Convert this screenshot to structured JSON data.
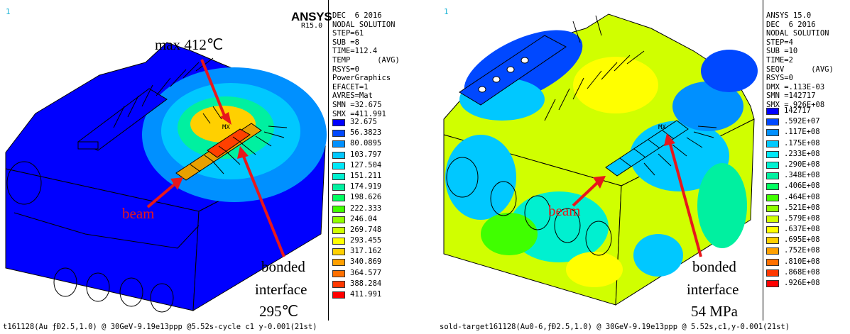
{
  "left": {
    "viewport_number": "1",
    "logo": "ANSYS",
    "logo_release": "R15.0",
    "info": [
      "DEC  6 2016",
      "NODAL SOLUTION",
      "STEP=61",
      "SUB =8",
      "TIME=112.4",
      "TEMP      (AVG)",
      "RSYS=0",
      "PowerGraphics",
      "EFACET=1",
      "AVRES=Mat",
      "SMN =32.675",
      "SMX =411.991"
    ],
    "legend": [
      {
        "value": "32.675",
        "color": "#0000ff"
      },
      {
        "value": "56.3823",
        "color": "#0048ff"
      },
      {
        "value": "80.0895",
        "color": "#0090ff"
      },
      {
        "value": "103.797",
        "color": "#00c8ff"
      },
      {
        "value": "127.504",
        "color": "#00e8f8"
      },
      {
        "value": "151.211",
        "color": "#00f0d0"
      },
      {
        "value": "174.919",
        "color": "#00f0a0"
      },
      {
        "value": "198.626",
        "color": "#00ff60"
      },
      {
        "value": "222.333",
        "color": "#40ff00"
      },
      {
        "value": "246.04",
        "color": "#90ff00"
      },
      {
        "value": "269.748",
        "color": "#d0ff00"
      },
      {
        "value": "293.455",
        "color": "#ffff00"
      },
      {
        "value": "317.162",
        "color": "#ffd000"
      },
      {
        "value": "340.869",
        "color": "#ffa000"
      },
      {
        "value": "364.577",
        "color": "#ff7000"
      },
      {
        "value": "388.284",
        "color": "#ff3800"
      },
      {
        "value": "411.991",
        "color": "#ff0000"
      }
    ],
    "annotations": {
      "max": "max 412℃",
      "beam": "beam",
      "bonded": "bonded",
      "interface": "interface",
      "value": "295℃",
      "mx": "MX"
    },
    "footer": "t161128(Au ƒÐ2.5,1.0) @ 30GeV-9.19e13ppp @5.52s-cycle c1 y-0.001(21st)"
  },
  "right": {
    "viewport_number": "1",
    "info": [
      "ANSYS 15.0",
      "DEC  6 2016",
      "NODAL SOLUTION",
      "STEP=4",
      "SUB =10",
      "TIME=2",
      "SEQV      (AVG)",
      "RSYS=0",
      "DMX =.113E-03",
      "SMN =142717",
      "SMX =.926E+08"
    ],
    "legend": [
      {
        "value": "142717",
        "color": "#0000ff"
      },
      {
        "value": ".592E+07",
        "color": "#0048ff"
      },
      {
        "value": ".117E+08",
        "color": "#0090ff"
      },
      {
        "value": ".175E+08",
        "color": "#00c8ff"
      },
      {
        "value": ".233E+08",
        "color": "#00e8f8"
      },
      {
        "value": ".290E+08",
        "color": "#00f0d0"
      },
      {
        "value": ".348E+08",
        "color": "#00f0a0"
      },
      {
        "value": ".406E+08",
        "color": "#00ff60"
      },
      {
        "value": ".464E+08",
        "color": "#40ff00"
      },
      {
        "value": ".521E+08",
        "color": "#90ff00"
      },
      {
        "value": ".579E+08",
        "color": "#d0ff00"
      },
      {
        "value": ".637E+08",
        "color": "#ffff00"
      },
      {
        "value": ".695E+08",
        "color": "#ffd000"
      },
      {
        "value": ".752E+08",
        "color": "#ffa000"
      },
      {
        "value": ".810E+08",
        "color": "#ff7000"
      },
      {
        "value": ".868E+08",
        "color": "#ff3800"
      },
      {
        "value": ".926E+08",
        "color": "#ff0000"
      }
    ],
    "annotations": {
      "beam": "beam",
      "bonded": "bonded",
      "interface": "interface",
      "value": "54 MPa",
      "mx": "MX"
    },
    "footer": "sold-target161128(Au0-6,ƒÐ2.5,1.0) @ 30GeV-9.19e13ppp @ 5.52s,c1,y-0.001(21st)"
  }
}
